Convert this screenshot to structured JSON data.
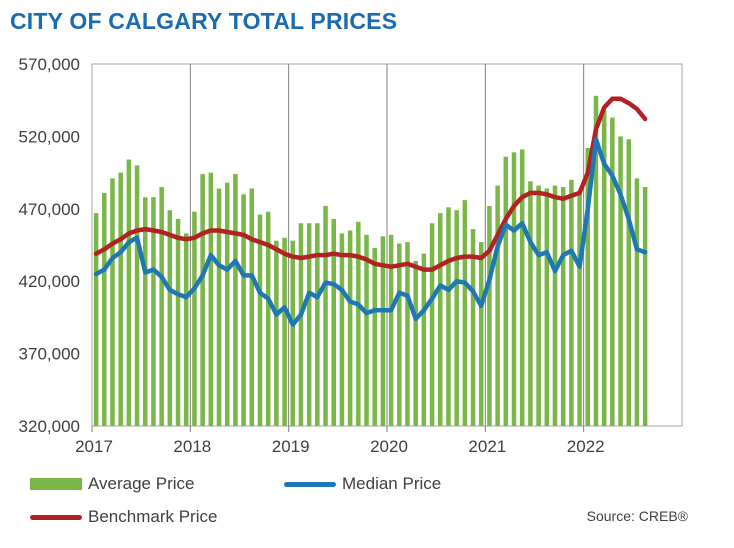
{
  "chart_data": {
    "type": "bar",
    "title": "CITY OF CALGARY TOTAL PRICES",
    "source": "Source: CREB®",
    "x_tick_labels": [
      "2017",
      "2018",
      "2019",
      "2020",
      "2021",
      "2022"
    ],
    "y_tick_labels": [
      "570,000",
      "520,000",
      "470,000",
      "420,000",
      "370,000",
      "320,000"
    ],
    "ylim": [
      320000,
      570000
    ],
    "grid": "vertical lines at each year",
    "legend_placement": "bottom",
    "colors": {
      "average": "#7ab648",
      "median": "#1f78b4",
      "benchmark": "#b22222",
      "title": "#1a6bb0"
    },
    "x_start": "2017-01",
    "series": [
      {
        "name": "Average Price",
        "kind": "bar",
        "values": [
          467000,
          481000,
          491000,
          495000,
          504000,
          500000,
          478000,
          478000,
          485000,
          469000,
          463000,
          453000,
          468000,
          494000,
          495000,
          484000,
          488000,
          494000,
          480000,
          484000,
          466000,
          468000,
          448000,
          450000,
          448000,
          460000,
          460000,
          460000,
          472000,
          463000,
          453000,
          455000,
          461000,
          452000,
          443000,
          451000,
          452000,
          446000,
          447000,
          434000,
          439000,
          460000,
          467000,
          471000,
          469000,
          476000,
          456000,
          447000,
          472000,
          486000,
          506000,
          509000,
          511000,
          489000,
          486000,
          484000,
          486000,
          485000,
          490000,
          482000,
          512000,
          548000,
          538000,
          533000,
          520000,
          518000,
          491000,
          485000
        ]
      },
      {
        "name": "Median Price",
        "kind": "line",
        "values": [
          425000,
          428000,
          436000,
          440000,
          447000,
          450000,
          426000,
          428000,
          423000,
          414000,
          411000,
          409000,
          415000,
          424000,
          438000,
          431000,
          428000,
          434000,
          424000,
          424000,
          412000,
          408000,
          397000,
          402000,
          390000,
          397000,
          412000,
          409000,
          419000,
          418000,
          414000,
          406000,
          404000,
          398000,
          400000,
          400000,
          400000,
          412000,
          410000,
          394000,
          400000,
          408000,
          417000,
          414000,
          420000,
          419000,
          413000,
          403000,
          421000,
          444000,
          459000,
          455000,
          460000,
          447000,
          438000,
          440000,
          427000,
          438000,
          441000,
          430000,
          470000,
          518000,
          501000,
          493000,
          480000,
          463000,
          442000,
          440000
        ]
      },
      {
        "name": "Benchmark Price",
        "kind": "line",
        "values": [
          439000,
          442000,
          446000,
          449000,
          453000,
          455000,
          456000,
          455000,
          454000,
          452000,
          450000,
          449000,
          450000,
          453000,
          455000,
          455000,
          454000,
          453000,
          452000,
          449000,
          447000,
          445000,
          442000,
          439000,
          437000,
          436000,
          437000,
          438000,
          438000,
          439000,
          438000,
          438000,
          437000,
          435000,
          432000,
          431000,
          430000,
          431000,
          432000,
          430000,
          428000,
          428000,
          431000,
          434000,
          436000,
          437000,
          437000,
          436000,
          441000,
          452000,
          463000,
          472000,
          478000,
          481000,
          481000,
          480000,
          478000,
          477000,
          479000,
          481000,
          495000,
          525000,
          540000,
          546000,
          546000,
          543000,
          539000,
          532000
        ]
      }
    ]
  }
}
